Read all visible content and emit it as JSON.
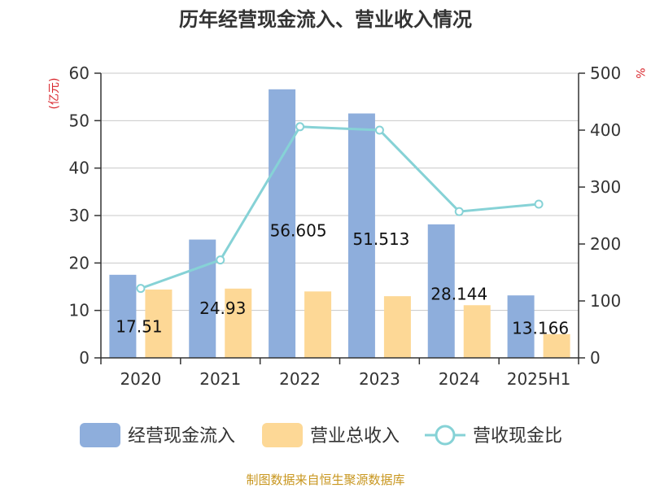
{
  "colors": {
    "cashflow": "#8eaedc",
    "revenue": "#fdd896",
    "ratio": "#86d2d6",
    "unit_text": "#d9262c",
    "source_text": "#c8961e"
  },
  "chart_data": {
    "type": "bar",
    "title": "历年经营现金流入、营业收入情况",
    "categories": [
      "2020",
      "2021",
      "2022",
      "2023",
      "2024",
      "2025H1"
    ],
    "series": [
      {
        "name": "经营现金流入",
        "type": "bar",
        "axis": "left",
        "values": [
          17.513,
          24.933,
          56.605,
          51.513,
          28.144,
          13.166
        ]
      },
      {
        "name": "营业总收入",
        "type": "bar",
        "axis": "left",
        "values": [
          14.4,
          14.6,
          14.0,
          13.0,
          11.1,
          5.0
        ]
      },
      {
        "name": "营收现金比",
        "type": "line",
        "axis": "right",
        "values": [
          122,
          172,
          406,
          400,
          257,
          270
        ]
      }
    ],
    "bar_labels": [
      "17.51",
      "24.93",
      "56.605",
      "51.513",
      "28.144",
      "13.166"
    ],
    "y_left": {
      "label": "(亿元)",
      "min": 0,
      "max": 60,
      "ticks": [
        "0",
        "10",
        "20",
        "30",
        "40",
        "50",
        "60"
      ]
    },
    "y_right": {
      "label": "%",
      "min": 0,
      "max": 500,
      "ticks": [
        "0",
        "100",
        "200",
        "300",
        "400",
        "500"
      ]
    },
    "grid": true,
    "legend_position": "bottom",
    "source": "制图数据来自恒生聚源数据库"
  }
}
